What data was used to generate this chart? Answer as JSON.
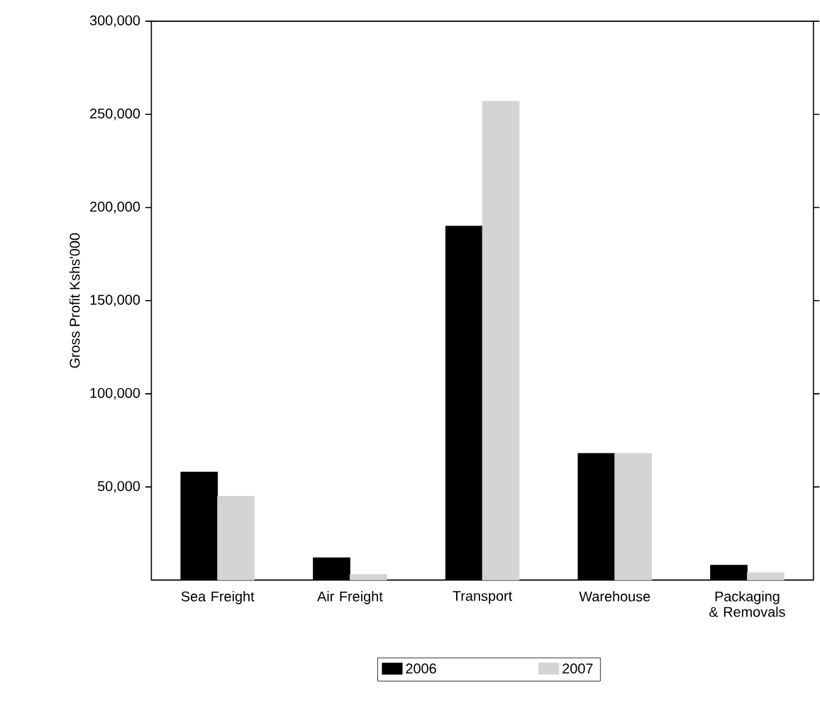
{
  "chart_data": {
    "type": "bar",
    "ylabel": "Gross Profit Kshs'000",
    "categories": [
      "Sea Freight",
      "Air Freight",
      "Transport",
      "Warehouse",
      "Packaging & Removals"
    ],
    "series": [
      {
        "name": "2006",
        "color": "#000000",
        "values": [
          58000,
          12000,
          190000,
          68000,
          8000
        ]
      },
      {
        "name": "2007",
        "color": "#d4d4d4",
        "values": [
          45000,
          3000,
          257000,
          68000,
          4000
        ]
      }
    ],
    "ylim": [
      0,
      300000
    ],
    "yticks": [
      {
        "value": 50000,
        "label": "50,000"
      },
      {
        "value": 100000,
        "label": "100,000"
      },
      {
        "value": 150000,
        "label": "150,000"
      },
      {
        "value": 200000,
        "label": "200,000"
      },
      {
        "value": 250000,
        "label": "250,000"
      },
      {
        "value": 300000,
        "label": "300,000"
      }
    ],
    "grid": false,
    "legend": "bottom"
  }
}
